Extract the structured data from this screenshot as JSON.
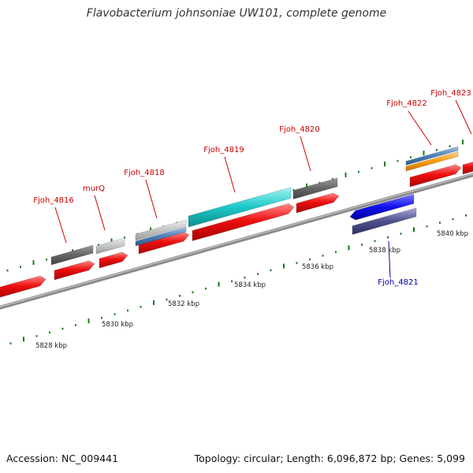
{
  "title": "Flavobacterium johnsoniae UW101, complete genome",
  "footer": {
    "accession": "Accession: NC_009441",
    "summary": "Topology: circular; Length: 6,096,872 bp; Genes: 5,099"
  },
  "colors": {
    "forward_label": "#cc0000",
    "reverse_label": "#0000aa",
    "tick": "#1a7a1a",
    "backbone": "#888888"
  },
  "ticks": [
    {
      "label": "5828 kbp"
    },
    {
      "label": "5830 kbp"
    },
    {
      "label": "5832 kbp"
    },
    {
      "label": "5834 kbp"
    },
    {
      "label": "5836 kbp"
    },
    {
      "label": "5838 kbp"
    },
    {
      "label": "5840 kbp"
    }
  ],
  "gene_labels": [
    {
      "name": "Fjoh_4816",
      "strand": "forward"
    },
    {
      "name": "murQ",
      "strand": "forward"
    },
    {
      "name": "Fjoh_4818",
      "strand": "forward"
    },
    {
      "name": "Fjoh_4819",
      "strand": "forward"
    },
    {
      "name": "Fjoh_4820",
      "strand": "forward"
    },
    {
      "name": "Fjoh_4821",
      "strand": "reverse"
    },
    {
      "name": "Fjoh_4822",
      "strand": "forward"
    },
    {
      "name": "Fjoh_4823",
      "strand": "forward"
    }
  ]
}
